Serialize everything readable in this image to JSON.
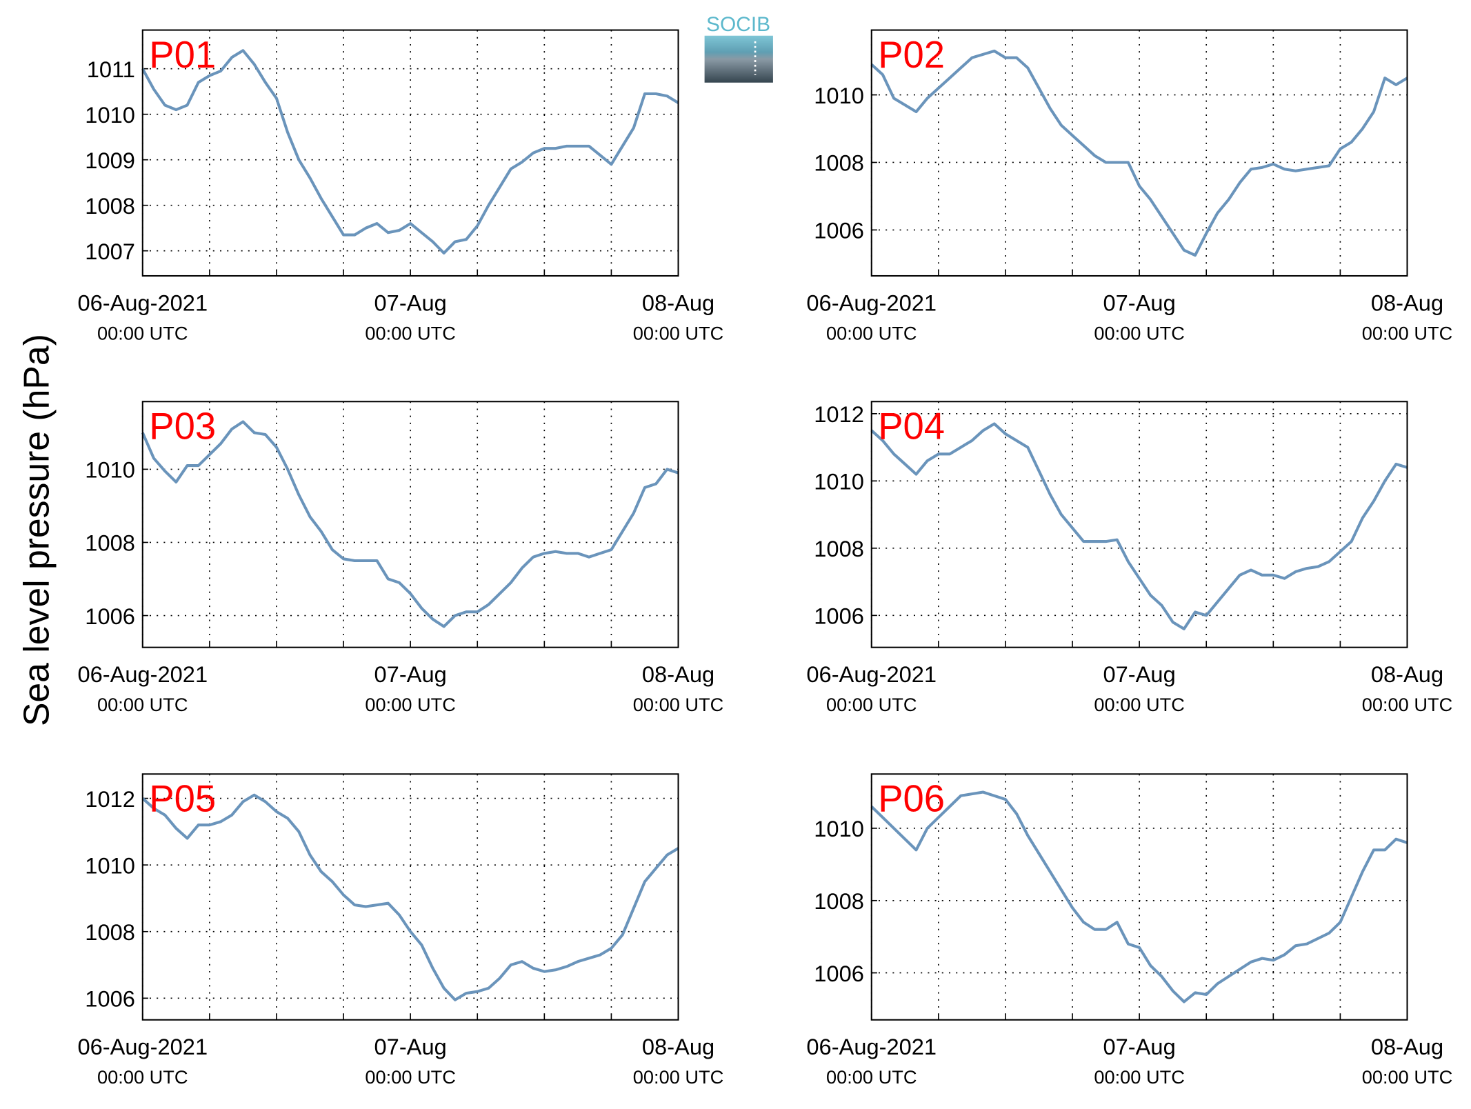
{
  "ylabel": "Sea level pressure (hPa)",
  "logo": "SOCIB",
  "chart_data": [
    {
      "type": "line",
      "title": "P01",
      "color": "#6a94bb",
      "grid": true,
      "x": [
        0,
        1,
        2,
        3,
        4,
        5,
        6,
        7,
        8,
        9,
        10,
        11,
        12,
        13,
        14,
        15,
        16,
        17,
        18,
        19,
        20,
        21,
        22,
        23,
        24,
        25,
        26,
        27,
        28,
        29,
        30,
        31,
        32,
        33,
        34,
        35,
        36,
        37,
        38,
        39,
        40,
        41,
        42,
        43,
        44,
        45,
        46,
        47,
        48
      ],
      "values": [
        1011.0,
        1010.55,
        1010.2,
        1010.1,
        1010.2,
        1010.7,
        1010.85,
        1010.95,
        1011.25,
        1011.4,
        1011.1,
        1010.7,
        1010.35,
        1009.6,
        1009.0,
        1008.6,
        1008.15,
        1007.75,
        1007.35,
        1007.35,
        1007.5,
        1007.6,
        1007.4,
        1007.45,
        1007.6,
        1007.4,
        1007.2,
        1006.95,
        1007.2,
        1007.25,
        1007.55,
        1008.0,
        1008.4,
        1008.8,
        1008.95,
        1009.15,
        1009.25,
        1009.25,
        1009.3,
        1009.3,
        1009.3,
        1009.1,
        1008.9,
        1009.3,
        1009.7,
        1010.45,
        1010.45,
        1010.4,
        1010.25
      ],
      "xlim": [
        0,
        48
      ],
      "xticks": [
        {
          "value": 0,
          "label": [
            "06-Aug-2021",
            "00:00 UTC"
          ]
        },
        {
          "value": 6,
          "label": null
        },
        {
          "value": 12,
          "label": null
        },
        {
          "value": 18,
          "label": null
        },
        {
          "value": 24,
          "label": [
            "07-Aug",
            "00:00 UTC"
          ]
        },
        {
          "value": 30,
          "label": null
        },
        {
          "value": 36,
          "label": null
        },
        {
          "value": 42,
          "label": null
        },
        {
          "value": 48,
          "label": [
            "08-Aug",
            "00:00 UTC"
          ]
        }
      ],
      "ylim": [
        1006.45,
        1011.85
      ],
      "yticks": [
        1007,
        1008,
        1009,
        1010,
        1011
      ]
    },
    {
      "type": "line",
      "title": "P02",
      "color": "#6a94bb",
      "grid": true,
      "x": [
        0,
        1,
        2,
        3,
        4,
        5,
        6,
        7,
        8,
        9,
        10,
        11,
        12,
        13,
        14,
        15,
        16,
        17,
        18,
        19,
        20,
        21,
        22,
        23,
        24,
        25,
        26,
        27,
        28,
        29,
        30,
        31,
        32,
        33,
        34,
        35,
        36,
        37,
        38,
        39,
        40,
        41,
        42,
        43,
        44,
        45,
        46,
        47,
        48
      ],
      "values": [
        1010.9,
        1010.6,
        1009.9,
        1009.7,
        1009.5,
        1009.9,
        1010.2,
        1010.5,
        1010.8,
        1011.1,
        1011.2,
        1011.3,
        1011.1,
        1011.1,
        1010.8,
        1010.2,
        1009.6,
        1009.1,
        1008.8,
        1008.5,
        1008.2,
        1008.0,
        1008.0,
        1008.0,
        1007.3,
        1006.9,
        1006.4,
        1005.9,
        1005.4,
        1005.25,
        1005.9,
        1006.5,
        1006.9,
        1007.4,
        1007.8,
        1007.85,
        1007.95,
        1007.8,
        1007.75,
        1007.8,
        1007.85,
        1007.9,
        1008.4,
        1008.6,
        1009.0,
        1009.5,
        1010.5,
        1010.3,
        1010.5
      ],
      "xlim": [
        0,
        48
      ],
      "xticks": [
        {
          "value": 0,
          "label": [
            "06-Aug-2021",
            "00:00 UTC"
          ]
        },
        {
          "value": 6,
          "label": null
        },
        {
          "value": 12,
          "label": null
        },
        {
          "value": 18,
          "label": null
        },
        {
          "value": 24,
          "label": [
            "07-Aug",
            "00:00 UTC"
          ]
        },
        {
          "value": 30,
          "label": null
        },
        {
          "value": 36,
          "label": null
        },
        {
          "value": 42,
          "label": null
        },
        {
          "value": 48,
          "label": [
            "08-Aug",
            "00:00 UTC"
          ]
        }
      ],
      "ylim": [
        1004.64,
        1011.92
      ],
      "yticks": [
        1006,
        1008,
        1010
      ]
    },
    {
      "type": "line",
      "title": "P03",
      "color": "#6a94bb",
      "grid": true,
      "x": [
        0,
        1,
        2,
        3,
        4,
        5,
        6,
        7,
        8,
        9,
        10,
        11,
        12,
        13,
        14,
        15,
        16,
        17,
        18,
        19,
        20,
        21,
        22,
        23,
        24,
        25,
        26,
        27,
        28,
        29,
        30,
        31,
        32,
        33,
        34,
        35,
        36,
        37,
        38,
        39,
        40,
        41,
        42,
        43,
        44,
        45,
        46,
        47,
        48
      ],
      "values": [
        1011.0,
        1010.3,
        1009.95,
        1009.65,
        1010.1,
        1010.1,
        1010.4,
        1010.7,
        1011.1,
        1011.3,
        1011.0,
        1010.95,
        1010.6,
        1010.0,
        1009.3,
        1008.7,
        1008.3,
        1007.8,
        1007.55,
        1007.5,
        1007.5,
        1007.5,
        1007.0,
        1006.9,
        1006.6,
        1006.2,
        1005.9,
        1005.7,
        1006.0,
        1006.1,
        1006.1,
        1006.3,
        1006.6,
        1006.9,
        1007.3,
        1007.6,
        1007.7,
        1007.75,
        1007.7,
        1007.7,
        1007.6,
        1007.7,
        1007.8,
        1008.3,
        1008.8,
        1009.5,
        1009.6,
        1010.0,
        1009.9
      ],
      "xlim": [
        0,
        48
      ],
      "xticks": [
        {
          "value": 0,
          "label": [
            "06-Aug-2021",
            "00:00 UTC"
          ]
        },
        {
          "value": 6,
          "label": null
        },
        {
          "value": 12,
          "label": null
        },
        {
          "value": 18,
          "label": null
        },
        {
          "value": 24,
          "label": [
            "07-Aug",
            "00:00 UTC"
          ]
        },
        {
          "value": 30,
          "label": null
        },
        {
          "value": 36,
          "label": null
        },
        {
          "value": 42,
          "label": null
        },
        {
          "value": 48,
          "label": [
            "08-Aug",
            "00:00 UTC"
          ]
        }
      ],
      "ylim": [
        1005.13,
        1011.85
      ],
      "yticks": [
        1006,
        1008,
        1010
      ]
    },
    {
      "type": "line",
      "title": "P04",
      "color": "#6a94bb",
      "grid": true,
      "x": [
        0,
        1,
        2,
        3,
        4,
        5,
        6,
        7,
        8,
        9,
        10,
        11,
        12,
        13,
        14,
        15,
        16,
        17,
        18,
        19,
        20,
        21,
        22,
        23,
        24,
        25,
        26,
        27,
        28,
        29,
        30,
        31,
        32,
        33,
        34,
        35,
        36,
        37,
        38,
        39,
        40,
        41,
        42,
        43,
        44,
        45,
        46,
        47,
        48
      ],
      "values": [
        1011.5,
        1011.2,
        1010.8,
        1010.5,
        1010.2,
        1010.6,
        1010.8,
        1010.8,
        1011.0,
        1011.2,
        1011.5,
        1011.7,
        1011.4,
        1011.2,
        1011.0,
        1010.3,
        1009.6,
        1009.0,
        1008.6,
        1008.2,
        1008.2,
        1008.2,
        1008.25,
        1007.6,
        1007.1,
        1006.6,
        1006.3,
        1005.8,
        1005.6,
        1006.1,
        1006.0,
        1006.4,
        1006.8,
        1007.2,
        1007.35,
        1007.2,
        1007.2,
        1007.1,
        1007.3,
        1007.4,
        1007.45,
        1007.6,
        1007.9,
        1008.2,
        1008.9,
        1009.4,
        1010.0,
        1010.5,
        1010.4
      ],
      "xlim": [
        0,
        48
      ],
      "xticks": [
        {
          "value": 0,
          "label": [
            "06-Aug-2021",
            "00:00 UTC"
          ]
        },
        {
          "value": 6,
          "label": null
        },
        {
          "value": 12,
          "label": null
        },
        {
          "value": 18,
          "label": null
        },
        {
          "value": 24,
          "label": [
            "07-Aug",
            "00:00 UTC"
          ]
        },
        {
          "value": 30,
          "label": null
        },
        {
          "value": 36,
          "label": null
        },
        {
          "value": 42,
          "label": null
        },
        {
          "value": 48,
          "label": [
            "08-Aug",
            "00:00 UTC"
          ]
        }
      ],
      "ylim": [
        1005.05,
        1012.36
      ],
      "yticks": [
        1006,
        1008,
        1010,
        1012
      ]
    },
    {
      "type": "line",
      "title": "P05",
      "color": "#6a94bb",
      "grid": true,
      "x": [
        0,
        1,
        2,
        3,
        4,
        5,
        6,
        7,
        8,
        9,
        10,
        11,
        12,
        13,
        14,
        15,
        16,
        17,
        18,
        19,
        20,
        21,
        22,
        23,
        24,
        25,
        26,
        27,
        28,
        29,
        30,
        31,
        32,
        33,
        34,
        35,
        36,
        37,
        38,
        39,
        40,
        41,
        42,
        43,
        44,
        45,
        46,
        47,
        48
      ],
      "values": [
        1012.0,
        1011.7,
        1011.5,
        1011.1,
        1010.8,
        1011.2,
        1011.2,
        1011.3,
        1011.5,
        1011.9,
        1012.1,
        1011.9,
        1011.6,
        1011.4,
        1011.0,
        1010.3,
        1009.8,
        1009.5,
        1009.1,
        1008.8,
        1008.75,
        1008.8,
        1008.85,
        1008.5,
        1008.0,
        1007.6,
        1006.9,
        1006.3,
        1005.95,
        1006.15,
        1006.2,
        1006.3,
        1006.6,
        1007.0,
        1007.1,
        1006.9,
        1006.8,
        1006.85,
        1006.95,
        1007.1,
        1007.2,
        1007.3,
        1007.5,
        1007.9,
        1008.7,
        1009.5,
        1009.9,
        1010.3,
        1010.5
      ],
      "xlim": [
        0,
        48
      ],
      "xticks": [
        {
          "value": 0,
          "label": [
            "06-Aug-2021",
            "00:00 UTC"
          ]
        },
        {
          "value": 6,
          "label": null
        },
        {
          "value": 12,
          "label": null
        },
        {
          "value": 18,
          "label": null
        },
        {
          "value": 24,
          "label": [
            "07-Aug",
            "00:00 UTC"
          ]
        },
        {
          "value": 30,
          "label": null
        },
        {
          "value": 36,
          "label": null
        },
        {
          "value": 42,
          "label": null
        },
        {
          "value": 48,
          "label": [
            "08-Aug",
            "00:00 UTC"
          ]
        }
      ],
      "ylim": [
        1005.35,
        1012.73
      ],
      "yticks": [
        1006,
        1008,
        1010,
        1012
      ]
    },
    {
      "type": "line",
      "title": "P06",
      "color": "#6a94bb",
      "grid": true,
      "x": [
        0,
        1,
        2,
        3,
        4,
        5,
        6,
        7,
        8,
        9,
        10,
        11,
        12,
        13,
        14,
        15,
        16,
        17,
        18,
        19,
        20,
        21,
        22,
        23,
        24,
        25,
        26,
        27,
        28,
        29,
        30,
        31,
        32,
        33,
        34,
        35,
        36,
        37,
        38,
        39,
        40,
        41,
        42,
        43,
        44,
        45,
        46,
        47,
        48
      ],
      "values": [
        1010.6,
        1010.3,
        1010.0,
        1009.7,
        1009.4,
        1010.0,
        1010.3,
        1010.6,
        1010.9,
        1010.95,
        1011.0,
        1010.9,
        1010.8,
        1010.4,
        1009.8,
        1009.3,
        1008.8,
        1008.3,
        1007.8,
        1007.4,
        1007.2,
        1007.2,
        1007.4,
        1006.8,
        1006.7,
        1006.2,
        1005.9,
        1005.5,
        1005.2,
        1005.45,
        1005.4,
        1005.7,
        1005.9,
        1006.1,
        1006.3,
        1006.4,
        1006.35,
        1006.5,
        1006.75,
        1006.8,
        1006.95,
        1007.1,
        1007.4,
        1008.1,
        1008.8,
        1009.4,
        1009.4,
        1009.7,
        1009.6
      ],
      "xlim": [
        0,
        48
      ],
      "xticks": [
        {
          "value": 0,
          "label": [
            "06-Aug-2021",
            "00:00 UTC"
          ]
        },
        {
          "value": 6,
          "label": null
        },
        {
          "value": 12,
          "label": null
        },
        {
          "value": 18,
          "label": null
        },
        {
          "value": 24,
          "label": [
            "07-Aug",
            "00:00 UTC"
          ]
        },
        {
          "value": 30,
          "label": null
        },
        {
          "value": 36,
          "label": null
        },
        {
          "value": 42,
          "label": null
        },
        {
          "value": 48,
          "label": [
            "08-Aug",
            "00:00 UTC"
          ]
        }
      ],
      "ylim": [
        1004.7,
        1011.5
      ],
      "yticks": [
        1006,
        1008,
        1010
      ]
    }
  ]
}
